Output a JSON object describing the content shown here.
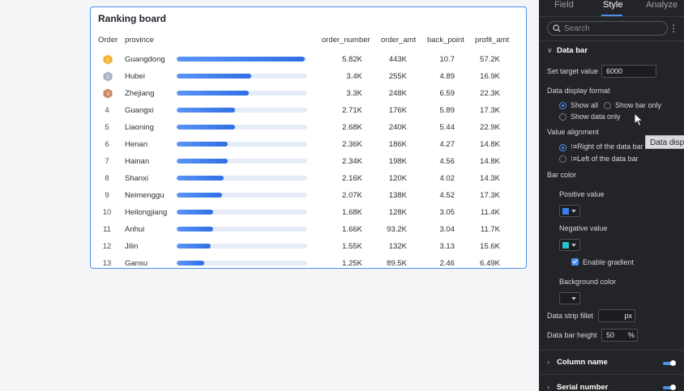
{
  "card": {
    "title": "Ranking board",
    "headers": {
      "order": "Order",
      "province": "province",
      "order_number": "order_number",
      "order_amt": "order_amt",
      "back_point": "back_point",
      "profit_amt": "profit_amt"
    },
    "rows": [
      {
        "order": "1",
        "medal": "gold",
        "province": "Guangdong",
        "bar": 0.98,
        "order_number": "5.82K",
        "order_amt": "443K",
        "back_point": "10.7",
        "profit_amt": "57.2K"
      },
      {
        "order": "2",
        "medal": "silver",
        "province": "Hubei",
        "bar": 0.57,
        "order_number": "3.4K",
        "order_amt": "255K",
        "back_point": "4.89",
        "profit_amt": "16.9K"
      },
      {
        "order": "3",
        "medal": "bronze",
        "province": "Zhejiang",
        "bar": 0.55,
        "order_number": "3.3K",
        "order_amt": "248K",
        "back_point": "6.59",
        "profit_amt": "22.3K"
      },
      {
        "order": "4",
        "medal": "",
        "province": "Guangxi",
        "bar": 0.45,
        "order_number": "2.71K",
        "order_amt": "176K",
        "back_point": "5.89",
        "profit_amt": "17.3K"
      },
      {
        "order": "5",
        "medal": "",
        "province": "Liaoning",
        "bar": 0.45,
        "order_number": "2.68K",
        "order_amt": "240K",
        "back_point": "5.44",
        "profit_amt": "22.9K"
      },
      {
        "order": "6",
        "medal": "",
        "province": "Henan",
        "bar": 0.39,
        "order_number": "2.36K",
        "order_amt": "186K",
        "back_point": "4.27",
        "profit_amt": "14.8K"
      },
      {
        "order": "7",
        "medal": "",
        "province": "Hainan",
        "bar": 0.39,
        "order_number": "2.34K",
        "order_amt": "198K",
        "back_point": "4.56",
        "profit_amt": "14.8K"
      },
      {
        "order": "8",
        "medal": "",
        "province": "Shanxi",
        "bar": 0.36,
        "order_number": "2.16K",
        "order_amt": "120K",
        "back_point": "4.02",
        "profit_amt": "14.3K"
      },
      {
        "order": "9",
        "medal": "",
        "province": "Neimenggu",
        "bar": 0.35,
        "order_number": "2.07K",
        "order_amt": "138K",
        "back_point": "4.52",
        "profit_amt": "17.3K"
      },
      {
        "order": "10",
        "medal": "",
        "province": "Heilongjiang",
        "bar": 0.28,
        "order_number": "1.68K",
        "order_amt": "128K",
        "back_point": "3.05",
        "profit_amt": "11.4K"
      },
      {
        "order": "11",
        "medal": "",
        "province": "Anhui",
        "bar": 0.28,
        "order_number": "1.66K",
        "order_amt": "93.2K",
        "back_point": "3.04",
        "profit_amt": "11.7K"
      },
      {
        "order": "12",
        "medal": "",
        "province": "Jilin",
        "bar": 0.26,
        "order_number": "1.55K",
        "order_amt": "132K",
        "back_point": "3.13",
        "profit_amt": "15.6K"
      },
      {
        "order": "13",
        "medal": "",
        "province": "Gansu",
        "bar": 0.21,
        "order_number": "1.25K",
        "order_amt": "89.5K",
        "back_point": "2.46",
        "profit_amt": "6.49K"
      }
    ]
  },
  "panel": {
    "tabs": [
      "Field",
      "Style",
      "Analyze"
    ],
    "active_tab": "Style",
    "search_placeholder": "Search",
    "section": "Data bar",
    "target_label": "Set target value",
    "target_value": "6000",
    "display_format_label": "Data display format",
    "opt_show_all": "Show all",
    "opt_show_bar_only": "Show bar only",
    "opt_show_data_only": "Show data only",
    "alignment_label": "Value alignment",
    "opt_right": "Right of the data bar",
    "opt_left": "Left of the data bar",
    "bar_color_label": "Bar color",
    "positive_label": "Positive value",
    "positive_color": "#3d7ef0",
    "negative_label": "Negative value",
    "negative_color": "#2bc0c8",
    "gradient_label": "Enable gradient",
    "background_label": "Background color",
    "fillet_label": "Data strip fillet",
    "fillet_unit": "px",
    "height_label": "Data bar height",
    "height_value": "50",
    "height_unit": "%",
    "column_name": "Column name",
    "serial_number": "Serial number",
    "tooltip": "Data display format"
  },
  "colors": {
    "accent": "#4d8fee",
    "gold": "#f2b233",
    "silver": "#a9b3c9",
    "bronze": "#c98a64"
  }
}
